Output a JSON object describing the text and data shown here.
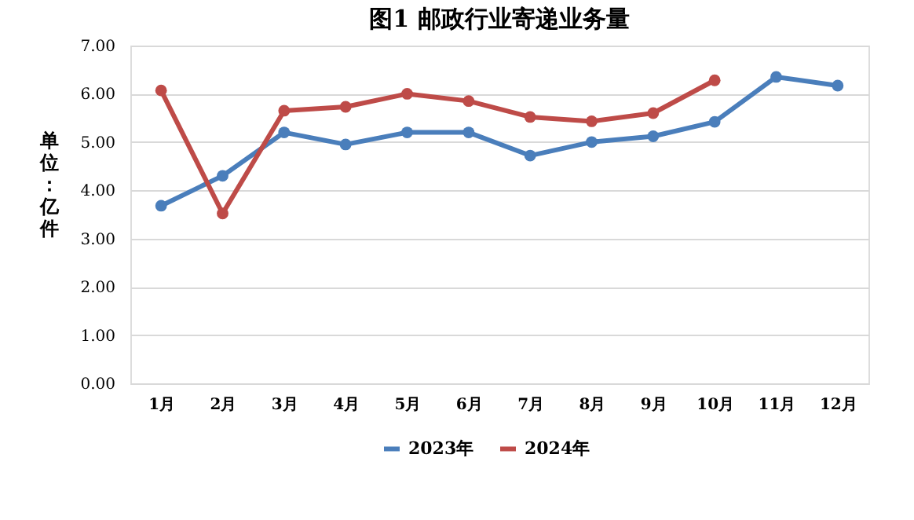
{
  "chart_data": {
    "type": "line",
    "title": "图1 邮政行业寄递业务量",
    "ylabel": "单位：亿件",
    "categories": [
      "1月",
      "2月",
      "3月",
      "4月",
      "5月",
      "6月",
      "7月",
      "8月",
      "9月",
      "10月",
      "11月",
      "12月"
    ],
    "series": [
      {
        "name": "2023年",
        "color": "#4a7ebb",
        "values": [
          3.68,
          4.3,
          5.2,
          4.95,
          5.2,
          5.2,
          4.72,
          5.0,
          5.12,
          5.42,
          6.35,
          6.17
        ]
      },
      {
        "name": "2024年",
        "color": "#be4b48",
        "values": [
          6.07,
          3.52,
          5.65,
          5.73,
          6.0,
          5.85,
          5.52,
          5.43,
          5.6,
          6.28,
          null,
          null
        ]
      }
    ],
    "ylim": [
      0,
      7
    ],
    "yticks": [
      {
        "value": 0,
        "label": "0.00"
      },
      {
        "value": 1,
        "label": "1.00"
      },
      {
        "value": 2,
        "label": "2.00"
      },
      {
        "value": 3,
        "label": "3.00"
      },
      {
        "value": 4,
        "label": "4.00"
      },
      {
        "value": 5,
        "label": "5.00"
      },
      {
        "value": 6,
        "label": "6.00"
      },
      {
        "value": 7,
        "label": "7.00"
      }
    ],
    "grid": "y",
    "legend": "bottom",
    "marker": "circle",
    "line_style": "solid"
  }
}
